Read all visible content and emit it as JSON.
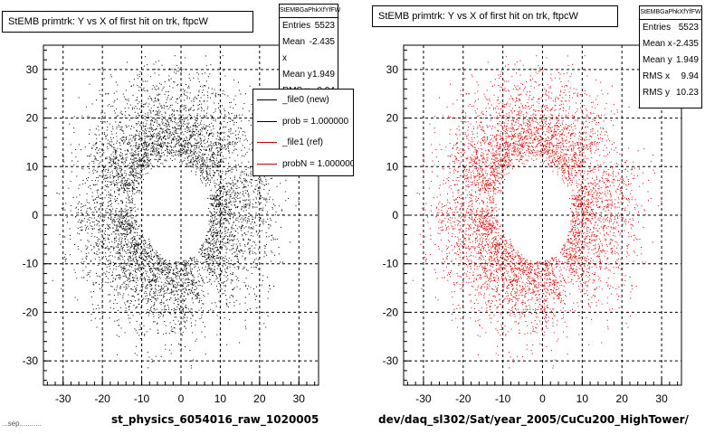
{
  "chart_data": [
    {
      "type": "scatter",
      "title": "StEMB primtrk: Y vs X of first hit on trk, ftpcW",
      "xlim": [
        -35,
        35
      ],
      "ylim": [
        -35,
        35
      ],
      "x_ticks": [
        -30,
        -20,
        -10,
        0,
        10,
        20,
        30
      ],
      "y_ticks": [
        -30,
        -20,
        -10,
        0,
        10,
        20,
        30
      ],
      "grid": true,
      "marker_color": "#000000",
      "stats": {
        "header": "StEMBGaPhkXfYfFW",
        "rows": [
          {
            "label": "Entries",
            "value": "5523"
          },
          {
            "label": "Mean x",
            "value": "-2.435"
          },
          {
            "label": "Mean y",
            "value": "1.949"
          },
          {
            "label": "RMS x",
            "value": "9.94"
          }
        ]
      },
      "legend": {
        "placement": "top-right",
        "entries": [
          {
            "label": "_file0 (new)",
            "color": "#000000"
          },
          {
            "label": "prob = 1.000000",
            "color": "#000000"
          },
          {
            "label": "_file1 (ref)",
            "color": "#cc0000"
          },
          {
            "label": "probN = 1.000000",
            "color": "#cc0000"
          }
        ]
      },
      "footer": "st_physics_6054016_raw_1020005",
      "distribution": {
        "entries": 5523,
        "mean_x": -2.435,
        "mean_y": 1.949,
        "rms_x": 9.94,
        "rms_y": 10.23
      }
    },
    {
      "type": "scatter",
      "title": "StEMB primtrk: Y vs X of first hit on trk, ftpcW",
      "xlim": [
        -35,
        35
      ],
      "ylim": [
        -35,
        35
      ],
      "x_ticks": [
        -30,
        -20,
        -10,
        0,
        10,
        20,
        30
      ],
      "y_ticks": [
        -30,
        -20,
        -10,
        0,
        10,
        20,
        30
      ],
      "grid": true,
      "marker_color": "#dd0000",
      "stats": {
        "header": "StEMBGaPhkXfYfFW",
        "rows": [
          {
            "label": "Entries",
            "value": "5523"
          },
          {
            "label": "Mean x",
            "value": "-2.435"
          },
          {
            "label": "Mean y",
            "value": "1.949"
          },
          {
            "label": "RMS x",
            "value": "9.94"
          },
          {
            "label": "RMS y",
            "value": "10.23"
          }
        ]
      },
      "footer": "dev/daq_sl302/Sat/year_2005/CuCu200_HighTower/",
      "distribution": {
        "entries": 5523,
        "mean_x": -2.435,
        "mean_y": 1.949,
        "rms_x": 9.94,
        "rms_y": 10.23
      }
    }
  ],
  "corner_text": "...sep..........."
}
